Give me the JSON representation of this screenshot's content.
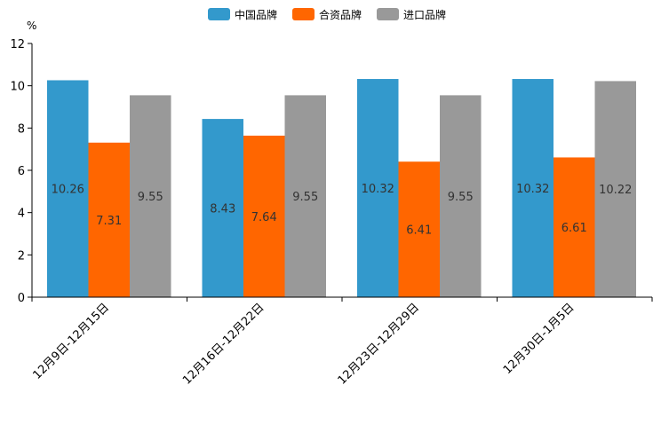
{
  "chart_data": {
    "type": "bar",
    "title": "",
    "unit": "%",
    "xlabel": "",
    "ylabel": "",
    "ylim": [
      0,
      12
    ],
    "yticks": [
      0,
      2,
      4,
      6,
      8,
      10,
      12
    ],
    "grid": false,
    "legend_position": "top-center",
    "categories": [
      "12月9日-12月15日",
      "12月16日-12月22日",
      "12月23日-12月29日",
      "12月30日-1月5日"
    ],
    "series": [
      {
        "name": "中国品牌",
        "color": "#3399cc",
        "values": [
          10.26,
          8.43,
          10.32,
          10.32
        ]
      },
      {
        "name": "合资品牌",
        "color": "#ff6600",
        "values": [
          7.31,
          7.64,
          6.41,
          6.61
        ]
      },
      {
        "name": "进口品牌",
        "color": "#999999",
        "values": [
          9.55,
          9.55,
          9.55,
          10.22
        ]
      }
    ]
  }
}
